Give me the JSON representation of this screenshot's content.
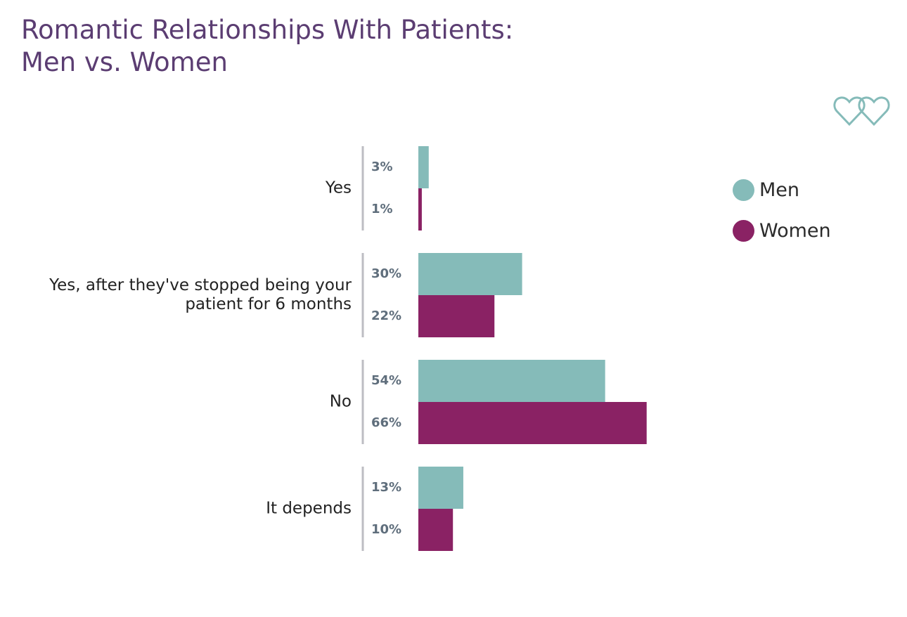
{
  "title_lines": [
    "Romantic Relationships With Patients:",
    "Men vs. Women"
  ],
  "colors": {
    "men": "#85bbb9",
    "women": "#8a2264",
    "axis": "#bdbdc3",
    "value_text": "#5f6e7c",
    "category_text": "#222222",
    "title": "#5b3d72"
  },
  "logo": {
    "icon": "double-heart-icon",
    "color": "#85bbb9"
  },
  "legend": [
    {
      "label": "Men",
      "color": "#85bbb9"
    },
    {
      "label": "Women",
      "color": "#8a2264"
    }
  ],
  "chart_data": {
    "type": "bar",
    "orientation": "horizontal",
    "title": "Romantic Relationships With Patients: Men vs. Women",
    "categories": [
      [
        "Yes"
      ],
      [
        "Yes, after they've stopped being your",
        "patient for 6 months"
      ],
      [
        "No"
      ],
      [
        "It depends"
      ]
    ],
    "series": [
      {
        "name": "Men",
        "values": [
          3,
          30,
          54,
          13
        ],
        "labels": [
          "3%",
          "30%",
          "54%",
          "13%"
        ],
        "color": "#85bbb9"
      },
      {
        "name": "Women",
        "values": [
          1,
          22,
          66,
          10
        ],
        "labels": [
          "1%",
          "22%",
          "66%",
          "10%"
        ],
        "color": "#8a2264"
      }
    ],
    "value_unit": "%",
    "xlim": [
      0,
      100
    ],
    "grid": false,
    "legend_position": "right"
  }
}
